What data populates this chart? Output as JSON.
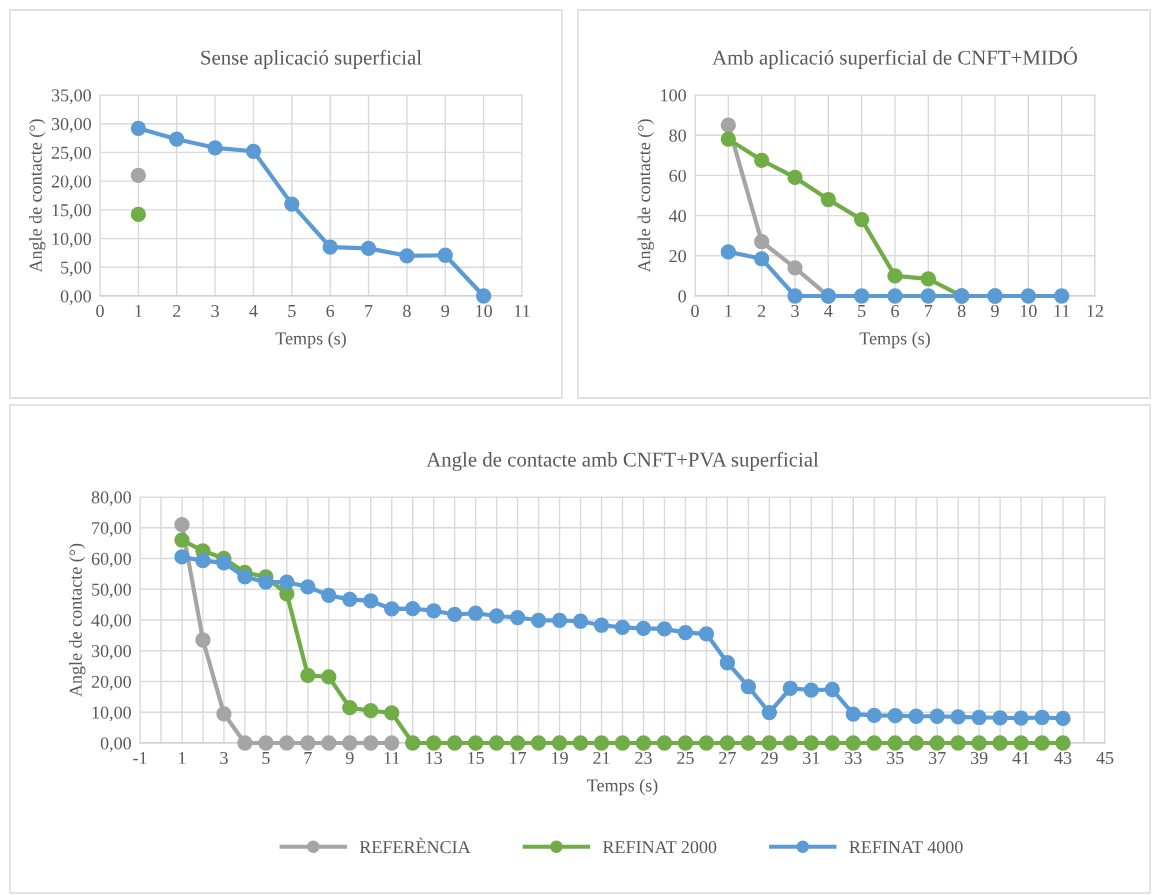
{
  "chart_data": [
    {
      "type": "line",
      "title": "Sense aplicació superficial",
      "xlabel": "Temps (s)",
      "ylabel": "Angle de contacte (°)",
      "xlim": [
        0,
        11
      ],
      "xticks": [
        0,
        1,
        2,
        3,
        4,
        5,
        6,
        7,
        8,
        9,
        10,
        11
      ],
      "ylim": [
        0,
        35
      ],
      "yticks": [
        {
          "value": 0,
          "label": "0,00"
        },
        {
          "value": 5,
          "label": "5,00"
        },
        {
          "value": 10,
          "label": "10,00"
        },
        {
          "value": 15,
          "label": "15,00"
        },
        {
          "value": 20,
          "label": "20,00"
        },
        {
          "value": 25,
          "label": "25,00"
        },
        {
          "value": 30,
          "label": "30,00"
        },
        {
          "value": 35,
          "label": "35,00"
        }
      ],
      "grid": true,
      "marker": "circle",
      "line_style": "solid",
      "legend": false,
      "series": [
        {
          "color": "#a5a5a5",
          "x": [
            1
          ],
          "values": [
            21
          ]
        },
        {
          "color": "#70ad47",
          "x": [
            1
          ],
          "values": [
            14.2
          ]
        },
        {
          "color": "#5b9bd5",
          "x": [
            1,
            2,
            3,
            4,
            5,
            6,
            7,
            8,
            9,
            10
          ],
          "values": [
            29.2,
            27.3,
            25.8,
            25.2,
            16,
            8.5,
            8.3,
            7,
            7.1,
            0
          ]
        }
      ]
    },
    {
      "type": "line",
      "title": "Amb aplicació superficial de CNFT+MIDÓ",
      "xlabel": "Temps (s)",
      "ylabel": "Angle de contacte (°)",
      "xlim": [
        0,
        12
      ],
      "xticks": [
        0,
        1,
        2,
        3,
        4,
        5,
        6,
        7,
        8,
        9,
        10,
        11,
        12
      ],
      "ylim": [
        0,
        100
      ],
      "yticks": [
        0,
        20,
        40,
        60,
        80,
        100
      ],
      "grid": true,
      "marker": "circle",
      "line_style": "solid",
      "legend": false,
      "series": [
        {
          "color": "#a5a5a5",
          "x": [
            1,
            2,
            3,
            4
          ],
          "values": [
            85,
            27,
            14,
            0
          ]
        },
        {
          "color": "#70ad47",
          "x": [
            1,
            2,
            3,
            4,
            5,
            6,
            7,
            8,
            9
          ],
          "values": [
            78,
            67.5,
            59,
            48,
            38,
            10,
            8.5,
            0,
            0
          ]
        },
        {
          "color": "#5b9bd5",
          "x": [
            1,
            2,
            3,
            4,
            5,
            6,
            7,
            8,
            9,
            10,
            11
          ],
          "values": [
            22,
            18.5,
            0,
            0,
            0,
            0,
            0,
            0,
            0,
            0,
            0
          ]
        }
      ]
    },
    {
      "type": "line",
      "title": "Angle de contacte amb CNFT+PVA superficial",
      "xlabel": "Temps (s)",
      "ylabel": "Angle de contacte (°)",
      "xlim": [
        -1,
        45
      ],
      "xticks": [
        -1,
        {
          "value": 0,
          "label": null
        },
        1,
        {
          "value": 2,
          "label": null
        },
        3,
        {
          "value": 4,
          "label": null
        },
        5,
        {
          "value": 6,
          "label": null
        },
        7,
        {
          "value": 8,
          "label": null
        },
        9,
        {
          "value": 10,
          "label": null
        },
        11,
        {
          "value": 12,
          "label": null
        },
        13,
        {
          "value": 14,
          "label": null
        },
        15,
        {
          "value": 16,
          "label": null
        },
        17,
        {
          "value": 18,
          "label": null
        },
        19,
        {
          "value": 20,
          "label": null
        },
        21,
        {
          "value": 22,
          "label": null
        },
        23,
        {
          "value": 24,
          "label": null
        },
        25,
        {
          "value": 26,
          "label": null
        },
        27,
        {
          "value": 28,
          "label": null
        },
        29,
        {
          "value": 30,
          "label": null
        },
        31,
        {
          "value": 32,
          "label": null
        },
        33,
        {
          "value": 34,
          "label": null
        },
        35,
        {
          "value": 36,
          "label": null
        },
        37,
        {
          "value": 38,
          "label": null
        },
        39,
        {
          "value": 40,
          "label": null
        },
        41,
        {
          "value": 42,
          "label": null
        },
        43,
        {
          "value": 44,
          "label": null
        },
        45
      ],
      "ylim": [
        0,
        80
      ],
      "yticks": [
        {
          "value": 0,
          "label": "0,00"
        },
        {
          "value": 10,
          "label": "10,00"
        },
        {
          "value": 20,
          "label": "20,00"
        },
        {
          "value": 30,
          "label": "30,00"
        },
        {
          "value": 40,
          "label": "40,00"
        },
        {
          "value": 50,
          "label": "50,00"
        },
        {
          "value": 60,
          "label": "60,00"
        },
        {
          "value": 70,
          "label": "70,00"
        },
        {
          "value": 80,
          "label": "80,00"
        }
      ],
      "grid": true,
      "marker": "circle",
      "line_style": "solid",
      "legend": "bottom",
      "series": [
        {
          "name": "REFERÈNCIA",
          "color": "#a5a5a5",
          "x": [
            1,
            2,
            3,
            4,
            5,
            6,
            7,
            8,
            9,
            10,
            11
          ],
          "values": [
            71,
            33.5,
            9.5,
            0,
            0,
            0,
            0,
            0,
            0,
            0,
            0
          ]
        },
        {
          "name": "REFINAT 2000",
          "color": "#70ad47",
          "x": [
            1,
            2,
            3,
            4,
            5,
            6,
            7,
            8,
            9,
            10,
            11,
            12,
            13,
            14,
            15,
            16,
            17,
            18,
            19,
            20,
            21,
            22,
            23,
            24,
            25,
            26,
            27,
            28,
            29,
            30,
            31,
            32,
            33,
            34,
            35,
            36,
            37,
            38,
            39,
            40,
            41,
            42,
            43
          ],
          "values": [
            66,
            62.5,
            60,
            55.5,
            54,
            48.5,
            22,
            21.5,
            11.5,
            10.5,
            9.8,
            0,
            0,
            0,
            0,
            0,
            0,
            0,
            0,
            0,
            0,
            0,
            0,
            0,
            0,
            0,
            0,
            0,
            0,
            0,
            0,
            0,
            0,
            0,
            0,
            0,
            0,
            0,
            0,
            0,
            0,
            0,
            0
          ]
        },
        {
          "name": "REFINAT 4000",
          "color": "#5b9bd5",
          "x": [
            1,
            2,
            3,
            4,
            5,
            6,
            7,
            8,
            9,
            10,
            11,
            12,
            13,
            14,
            15,
            16,
            17,
            18,
            19,
            20,
            21,
            22,
            23,
            24,
            25,
            26,
            27,
            28,
            29,
            30,
            31,
            32,
            33,
            34,
            35,
            36,
            37,
            38,
            39,
            40,
            41,
            42,
            43
          ],
          "values": [
            60.5,
            59.3,
            58.6,
            54,
            52.3,
            52.3,
            50.8,
            48,
            46.7,
            46.2,
            43.6,
            43.7,
            43,
            41.8,
            42.2,
            41.3,
            40.8,
            39.9,
            39.9,
            39.6,
            38.3,
            37.6,
            37.3,
            37.1,
            35.9,
            35.5,
            26.1,
            18.3,
            9.9,
            17.8,
            17.2,
            17.4,
            9.4,
            9,
            8.9,
            8.7,
            8.7,
            8.5,
            8.3,
            8.2,
            8.1,
            8.3,
            8
          ]
        }
      ]
    }
  ]
}
